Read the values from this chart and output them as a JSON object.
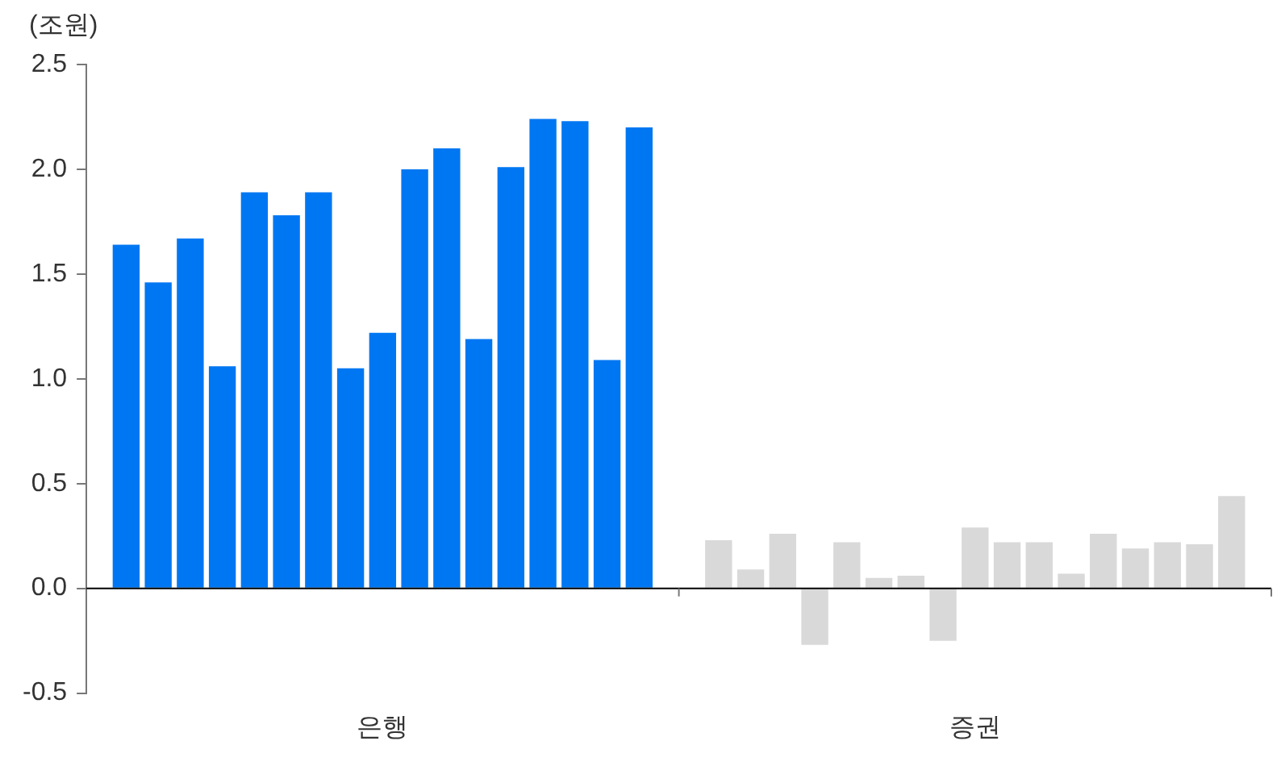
{
  "chart_data": {
    "type": "bar",
    "ylabel": "(조원)",
    "categories": [
      "은행",
      "증권"
    ],
    "series": [
      {
        "colors": [
          "#0077f2",
          "#d9d9d9"
        ],
        "values": [
          1.64,
          0.23
        ]
      },
      {
        "colors": [
          "#0077f2",
          "#d9d9d9"
        ],
        "values": [
          1.46,
          0.09
        ]
      },
      {
        "colors": [
          "#0077f2",
          "#d9d9d9"
        ],
        "values": [
          1.67,
          0.26
        ]
      },
      {
        "colors": [
          "#0077f2",
          "#d9d9d9"
        ],
        "values": [
          1.06,
          -0.27
        ]
      },
      {
        "colors": [
          "#0077f2",
          "#d9d9d9"
        ],
        "values": [
          1.89,
          0.22
        ]
      },
      {
        "colors": [
          "#0077f2",
          "#d9d9d9"
        ],
        "values": [
          1.78,
          0.05
        ]
      },
      {
        "colors": [
          "#0077f2",
          "#d9d9d9"
        ],
        "values": [
          1.89,
          0.06
        ]
      },
      {
        "colors": [
          "#0077f2",
          "#d9d9d9"
        ],
        "values": [
          1.05,
          -0.25
        ]
      },
      {
        "colors": [
          "#0077f2",
          "#d9d9d9"
        ],
        "values": [
          1.22,
          0.29
        ]
      },
      {
        "colors": [
          "#0077f2",
          "#d9d9d9"
        ],
        "values": [
          2.0,
          0.22
        ]
      },
      {
        "colors": [
          "#0077f2",
          "#d9d9d9"
        ],
        "values": [
          2.1,
          0.22
        ]
      },
      {
        "colors": [
          "#0077f2",
          "#d9d9d9"
        ],
        "values": [
          1.19,
          0.07
        ]
      },
      {
        "colors": [
          "#0077f2",
          "#d9d9d9"
        ],
        "values": [
          2.01,
          0.26
        ]
      },
      {
        "colors": [
          "#0077f2",
          "#d9d9d9"
        ],
        "values": [
          2.24,
          0.19
        ]
      },
      {
        "colors": [
          "#0077f2",
          "#d9d9d9"
        ],
        "values": [
          2.23,
          0.22
        ]
      },
      {
        "colors": [
          "#0077f2",
          "#d9d9d9"
        ],
        "values": [
          1.09,
          0.21
        ]
      },
      {
        "colors": [
          "#0077f2",
          "#d9d9d9"
        ],
        "values": [
          2.2,
          0.44
        ]
      }
    ],
    "ylim": [
      -0.5,
      2.5
    ],
    "yticks": [
      {
        "value": -0.5,
        "label": "-0.5"
      },
      {
        "value": 0,
        "label": "0.0"
      },
      0.5,
      {
        "value": 1,
        "label": "1.0"
      },
      1.5,
      {
        "value": 2,
        "label": "2.0"
      },
      2.5
    ],
    "legend": false
  }
}
